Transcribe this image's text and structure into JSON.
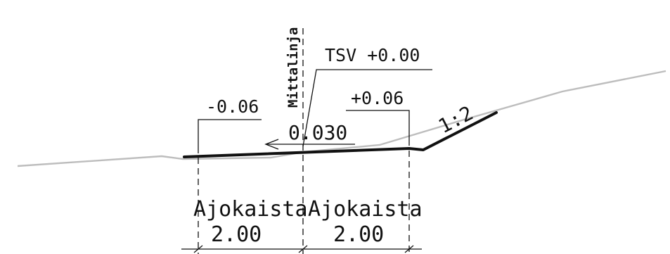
{
  "labels": {
    "centerline": "Mittalinja",
    "design_level": "TSV +0.00",
    "left_edge_height": "-0.06",
    "right_edge_height": "+0.06",
    "crossfall": "0.030",
    "slope": "1:2"
  },
  "lanes": [
    {
      "name": "Ajokaista",
      "width": "2.00"
    },
    {
      "name": "Ajokaista",
      "width": "2.00"
    }
  ]
}
